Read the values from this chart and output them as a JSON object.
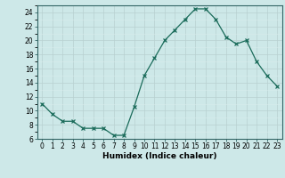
{
  "x": [
    0,
    1,
    2,
    3,
    4,
    5,
    6,
    7,
    8,
    9,
    10,
    11,
    12,
    13,
    14,
    15,
    16,
    17,
    18,
    19,
    20,
    21,
    22,
    23
  ],
  "y": [
    11,
    9.5,
    8.5,
    8.5,
    7.5,
    7.5,
    7.5,
    6.5,
    6.5,
    10.5,
    15,
    17.5,
    20,
    21.5,
    23,
    24.5,
    24.5,
    23,
    20.5,
    19.5,
    20,
    17,
    15,
    13.5
  ],
  "line_color": "#1a6b5a",
  "marker": "x",
  "bg_color": "#cde8e8",
  "grid_major_color": "#b8d0d0",
  "grid_minor_color": "#d8ecec",
  "spine_color": "#336666",
  "xlabel": "Humidex (Indice chaleur)",
  "xlim": [
    -0.5,
    23.5
  ],
  "ylim": [
    6,
    25
  ],
  "yticks": [
    6,
    8,
    10,
    12,
    14,
    16,
    18,
    20,
    22,
    24
  ],
  "xticks": [
    0,
    1,
    2,
    3,
    4,
    5,
    6,
    7,
    8,
    9,
    10,
    11,
    12,
    13,
    14,
    15,
    16,
    17,
    18,
    19,
    20,
    21,
    22,
    23
  ],
  "tick_label_fontsize": 5.5,
  "xlabel_fontsize": 6.5
}
